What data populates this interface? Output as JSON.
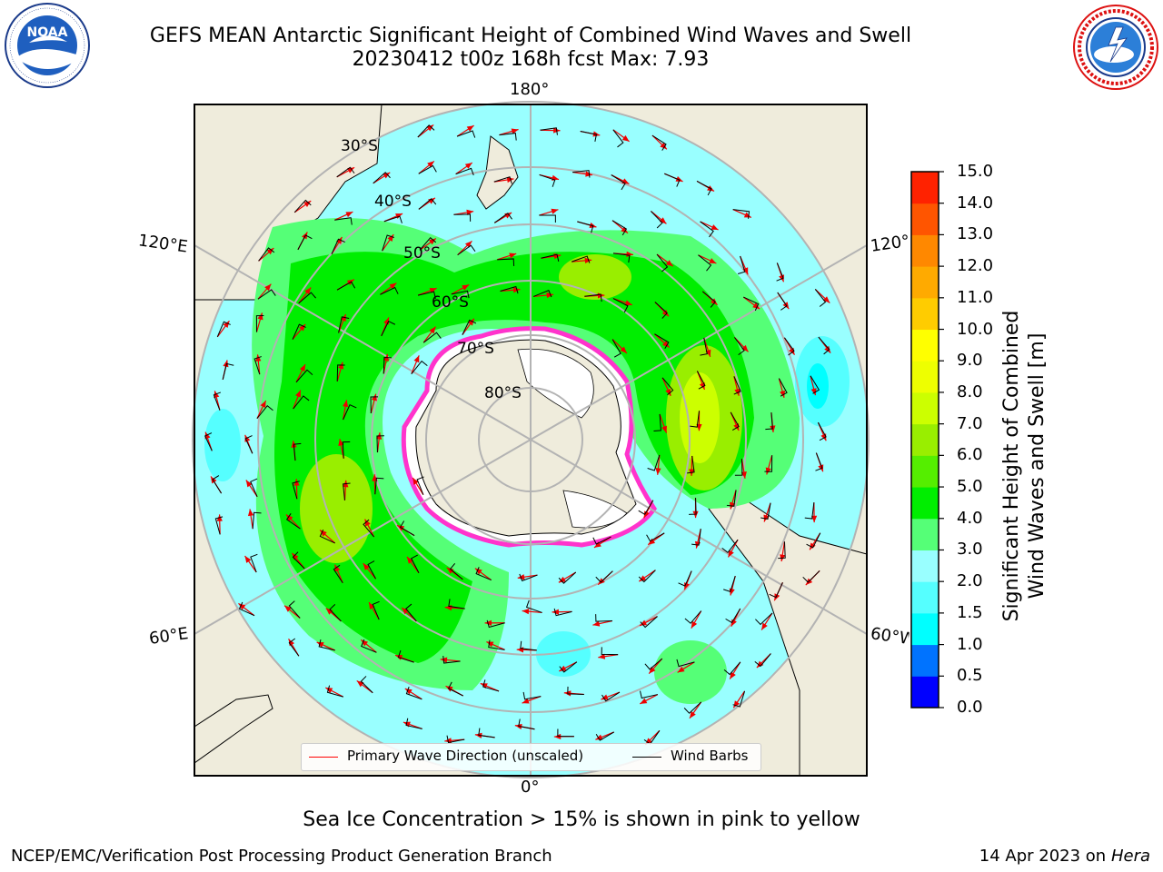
{
  "header": {
    "title_line1": "GEFS MEAN Antarctic Significant Height of Combined Wind Waves and Swell",
    "title_line2": "20230412 t00z 168h fcst   Max: 7.93"
  },
  "logos": {
    "left": {
      "icon": "noaa-logo",
      "text": "NOAA",
      "ring_text": "NATIONAL OCEANIC AND ATMOSPHERIC ADMINISTRATION · U.S. DEPARTMENT OF COMMERCE"
    },
    "right": {
      "icon": "nws-logo",
      "ring_text": "NATIONAL WEATHER SERVICE"
    }
  },
  "map": {
    "projection": "south-polar-stereographic",
    "longitude_labels": {
      "top": "180°",
      "bottom": "0°",
      "upper_left": "120°E",
      "upper_right": "120°W",
      "lower_left": "60°E",
      "lower_right": "60°W"
    },
    "latitude_labels": [
      "30°S",
      "40°S",
      "50°S",
      "60°S",
      "70°S",
      "80°S"
    ],
    "colors": {
      "land": "#efecdc",
      "ice_edge": "#ff33cc",
      "wave_arrow": "#ee0000",
      "barb": "#000000"
    }
  },
  "colorbar": {
    "label_line1": "Significant Height of Combined",
    "label_line2": "Wind Waves and Swell [m]",
    "ticks": [
      "15.0",
      "14.0",
      "13.0",
      "12.0",
      "11.0",
      "10.0",
      "9.0",
      "8.0",
      "7.0",
      "6.0",
      "5.0",
      "4.0",
      "3.0",
      "2.0",
      "1.5",
      "1.0",
      "0.5",
      "0.0"
    ],
    "colors_bottom_to_top": [
      "#0000ff",
      "#0073ff",
      "#00ffff",
      "#55ffff",
      "#99ffff",
      "#55ff77",
      "#00ee00",
      "#55ee00",
      "#99ee00",
      "#ccff00",
      "#eeff00",
      "#ffff00",
      "#ffcc00",
      "#ffaa00",
      "#ff8800",
      "#ff5500",
      "#ff2200"
    ]
  },
  "legend": {
    "items": [
      {
        "label": "Primary Wave Direction (unscaled)",
        "color": "#ff0000"
      },
      {
        "label": "Wind Barbs",
        "color": "#000000"
      }
    ]
  },
  "footer": {
    "note": "Sea Ice Concentration > 15% is shown in pink to yellow",
    "credit": "NCEP/EMC/Verification Post Processing Product Generation Branch",
    "date_prefix": "14 Apr 2023 on ",
    "machine": "Hera"
  }
}
